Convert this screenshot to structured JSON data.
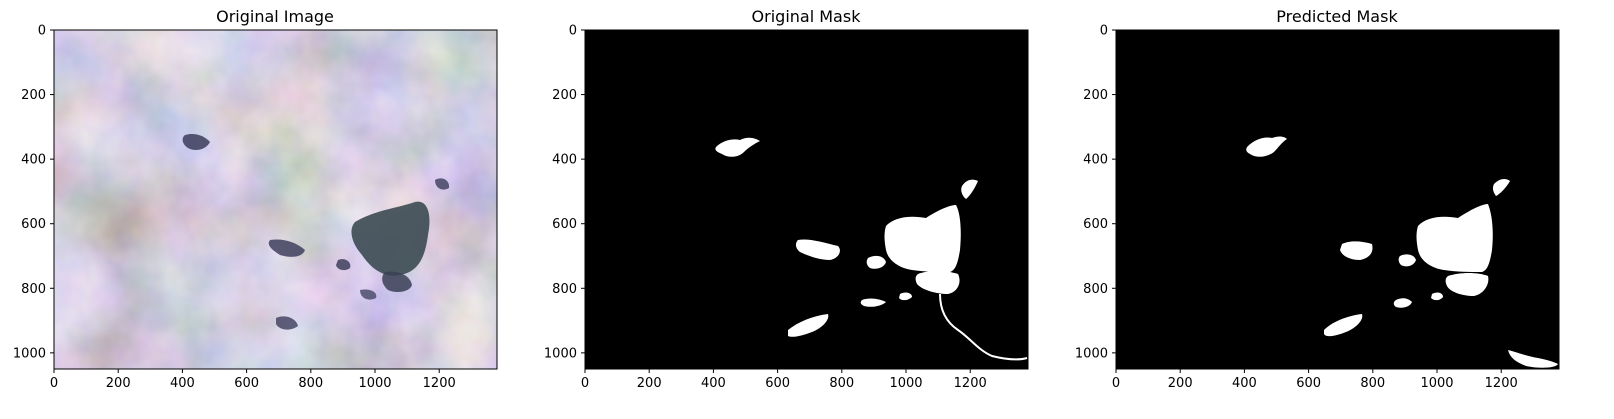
{
  "panels": [
    {
      "title": "Original Image",
      "kind": "satellite"
    },
    {
      "title": "Original Mask",
      "kind": "mask"
    },
    {
      "title": "Predicted Mask",
      "kind": "mask"
    }
  ],
  "axes": {
    "x_ticks": [
      "0",
      "200",
      "400",
      "600",
      "800",
      "1000",
      "1200"
    ],
    "y_ticks": [
      "0",
      "200",
      "400",
      "600",
      "800",
      "1000"
    ],
    "x_range": [
      0,
      1380
    ],
    "y_range": [
      1050,
      0
    ]
  },
  "colors": {
    "mask_background": "#000000",
    "mask_foreground": "#ffffff",
    "image_green": "#9aa87a",
    "image_purple": "#7b68a0",
    "image_dark": "#3b3f5a"
  }
}
